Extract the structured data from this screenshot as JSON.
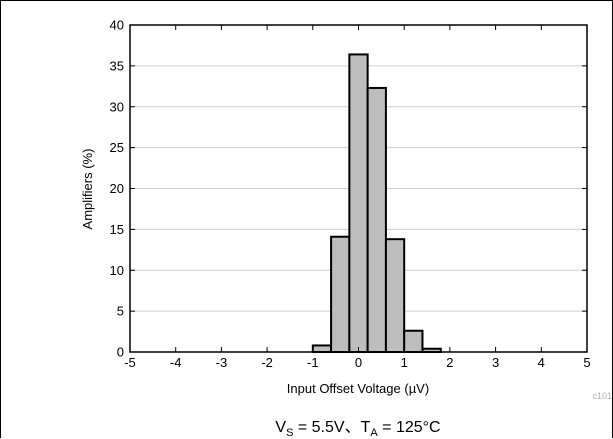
{
  "figure_id": "c101",
  "caption": {
    "vs_symbol": "V",
    "vs_subscript": "S",
    "vs_value": " = 5.5V、",
    "ta_symbol": "T",
    "ta_subscript": "A",
    "ta_value": " = 125°C"
  },
  "colors": {
    "bar_fill": "#bdbdbd",
    "bar_stroke": "#000000",
    "grid": "#cfcfcf",
    "axis": "#000000"
  },
  "chart_data": {
    "type": "bar",
    "title": "",
    "xlabel": "Input Offset Voltage (µV)",
    "ylabel": "Amplifiers (%)",
    "xlim": [
      -5,
      5
    ],
    "ylim": [
      0,
      40
    ],
    "x_ticks": [
      "-5",
      "-4",
      "-3",
      "-2",
      "-1",
      "0",
      "1",
      "2",
      "3",
      "4",
      "5"
    ],
    "y_ticks": [
      "0",
      "5",
      "10",
      "15",
      "20",
      "25",
      "30",
      "35",
      "40"
    ],
    "grid": "horizontal",
    "bin_width": 0.4,
    "bin_starts": [
      -1.0,
      -0.6,
      -0.2,
      0.2,
      0.6,
      1.0
    ],
    "values": [
      0.8,
      14.1,
      36.4,
      32.3,
      13.8,
      2.6
    ],
    "extra_bins": [
      {
        "start": 1.4,
        "width": 0.4,
        "value": 0.4
      }
    ]
  }
}
